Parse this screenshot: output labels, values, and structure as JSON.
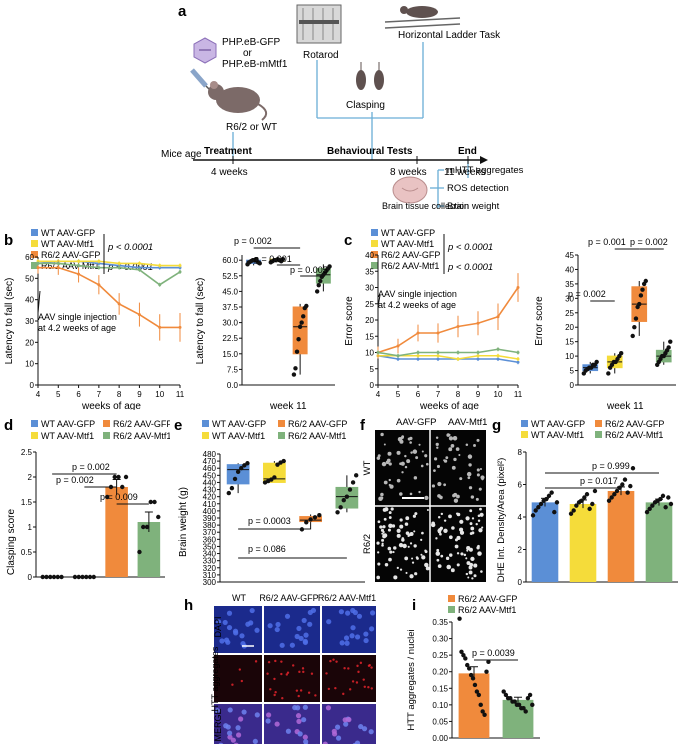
{
  "colors": {
    "wt_gfp": "#5b8fd6",
    "wt_mtf1": "#f5dc3a",
    "r62_gfp": "#f08a3c",
    "r62_mtf1": "#7fb27c",
    "dapi": "#1b2a8c",
    "htt": "#7a0d14",
    "merge": "#3a2a8c",
    "timeline": "#6aaed6"
  },
  "panel_a": {
    "letter": "a",
    "virus_line1": "PHP.eB-GFP",
    "virus_or": "or",
    "virus_line2": "PHP.eB-mMtf1",
    "mouse_label": "R6/2 or WT",
    "rotarod": "Rotarod",
    "ladder": "Horizontal Ladder Task",
    "clasping": "Clasping",
    "mice_age": "Mice age",
    "treatment": "Treatment",
    "behav": "Behavioural Tests",
    "end": "End",
    "t4": "4 weeks",
    "t8": "8 weeks",
    "t11": "11 weeks",
    "brain_collection": "Brain tissue collection",
    "outcomes": [
      "mHTT aggregates",
      "ROS detection",
      "Brain weight"
    ]
  },
  "panel_b": {
    "letter": "b",
    "legend": [
      "WT AAV-GFP",
      "WT AAV-Mtf1",
      "R6/2 AAV-GFP",
      "R6/2 AAV-Mtf1"
    ],
    "p1": "p < 0.0001",
    "p2": "p < 0.0001",
    "ylabel": "Latency to fall (sec)",
    "xlabel": "weeks of age",
    "annotation": [
      "AAV single injection",
      "at 4.2 weeks of age"
    ],
    "ylabel2": "Latency to fall (sec)",
    "xlabel2": "week 11",
    "pvals": [
      "p = 0.002",
      "p = 0.001",
      "p = 0.005"
    ]
  },
  "panel_c": {
    "letter": "c",
    "legend": [
      "WT AAV-GFP",
      "WT AAV-Mtf1",
      "R6/2 AAV-GFP",
      "R6/2 AAV-Mtf1"
    ],
    "p1": "p < 0.0001",
    "p2": "p < 0.0001",
    "ylabel": "Error score",
    "xlabel": "weeks of age",
    "annotation": [
      "AAV single injection",
      "at 4.2 weeks of age"
    ],
    "ylabel2": "Error score",
    "xlabel2": "week 11",
    "pvals": [
      "p = 0.002",
      "p = 0.001",
      "p = 0.002"
    ]
  },
  "panel_d": {
    "letter": "d",
    "legend": [
      "WT AAV-GFP",
      "R6/2 AAV-GFP",
      "WT AAV-Mtf1",
      "R6/2 AAV-Mtf1"
    ],
    "ylabel": "Clasping score",
    "pvals": [
      "p = 0.002",
      "p = 0.002",
      "p = 0.009"
    ]
  },
  "panel_e": {
    "letter": "e",
    "legend": [
      "WT AAV-GFP",
      "R6/2 AAV-GFP",
      "WT AAV-Mtf1",
      "R6/2 AAV-Mtf1"
    ],
    "ylabel": "Brain weight (g)",
    "pvals": [
      "p = 0.0003",
      "p = 0.086"
    ]
  },
  "panel_f": {
    "letter": "f",
    "cols": [
      "AAV-GFP",
      "AAV-Mtf1"
    ],
    "rows": [
      "WT",
      "R6/2"
    ]
  },
  "panel_g": {
    "letter": "g",
    "legend": [
      "WT AAV-GFP",
      "R6/2 AAV-GFP",
      "WT AAV-Mtf1",
      "R6/2 AAV-Mtf1"
    ],
    "ylabel": "DHE Int. Density/Area (pixel²)",
    "pvals": [
      "p = 0.999",
      "p = 0.017"
    ]
  },
  "panel_h": {
    "letter": "h",
    "cols": [
      "WT",
      "R6/2 AAV-GFP",
      "R6/2 AAV-Mtf1"
    ],
    "rows": [
      "DAPI",
      "HTT aggregates",
      "MERGE"
    ]
  },
  "panel_i": {
    "letter": "i",
    "legend": [
      "R6/2 AAV-GFP",
      "R6/2 AAV-Mtf1"
    ],
    "ylabel": "HTT aggregates / nuclei",
    "pval": "p = 0.0039"
  },
  "chart_data": [
    {
      "id": "b_line",
      "type": "line",
      "xlabel": "weeks of age",
      "ylabel": "Latency to fall (sec)",
      "x": [
        4,
        5,
        6,
        7,
        8,
        9,
        10,
        11
      ],
      "xlim": [
        4,
        11
      ],
      "ylim": [
        0,
        60
      ],
      "yticks": [
        0,
        10,
        20,
        30,
        40,
        50,
        60
      ],
      "series": [
        {
          "name": "WT AAV-GFP",
          "values": [
            57,
            58,
            58,
            57,
            56,
            55,
            55,
            55
          ]
        },
        {
          "name": "WT AAV-Mtf1",
          "values": [
            58,
            58,
            58,
            58,
            57,
            57,
            56,
            56
          ]
        },
        {
          "name": "R6/2 AAV-GFP",
          "values": [
            55,
            55,
            52,
            47,
            38,
            33,
            27,
            27
          ]
        },
        {
          "name": "R6/2 AAV-Mtf1",
          "values": [
            57,
            57,
            56,
            55,
            55,
            54,
            47,
            53
          ]
        }
      ]
    },
    {
      "id": "b_box",
      "type": "box",
      "ylabel": "Latency to fall (sec)",
      "xlabel": "week 11",
      "ylim": [
        0,
        62.5
      ],
      "yticks": [
        0,
        7.5,
        15,
        22.5,
        30,
        37.5,
        45,
        52.5,
        60
      ],
      "groups": [
        {
          "name": "WT AAV-GFP",
          "q1": 58.5,
          "median": 59.5,
          "q3": 60,
          "min": 57.5,
          "max": 61,
          "points": [
            58,
            59,
            59.5,
            60,
            60,
            60.5,
            59,
            58.5
          ]
        },
        {
          "name": "WT AAV-Mtf1",
          "q1": 59.5,
          "median": 60,
          "q3": 60.5,
          "min": 59,
          "max": 60.5,
          "points": [
            59,
            59.5,
            60,
            60,
            60.5,
            60,
            59.5,
            60.5
          ]
        },
        {
          "name": "R6/2 AAV-GFP",
          "q1": 15,
          "median": 28,
          "q3": 37.5,
          "min": 5,
          "max": 39,
          "points": [
            5,
            8,
            16,
            22,
            28,
            30,
            33,
            37,
            38
          ]
        },
        {
          "name": "R6/2 AAV-Mtf1",
          "q1": 49,
          "median": 53,
          "q3": 56,
          "min": 45,
          "max": 58,
          "points": [
            45,
            48,
            50,
            52,
            53,
            54,
            55,
            56,
            57
          ]
        }
      ]
    },
    {
      "id": "c_line",
      "type": "line",
      "xlabel": "weeks of age",
      "ylabel": "Error score",
      "x": [
        4,
        5,
        6,
        7,
        8,
        9,
        10,
        11
      ],
      "xlim": [
        4,
        11
      ],
      "ylim": [
        0,
        40
      ],
      "yticks": [
        0,
        5,
        10,
        15,
        20,
        25,
        30,
        35,
        40
      ],
      "series": [
        {
          "name": "WT AAV-GFP",
          "values": [
            9,
            8,
            8,
            8,
            8,
            8,
            8,
            7
          ]
        },
        {
          "name": "WT AAV-Mtf1",
          "values": [
            9,
            9,
            9,
            9,
            8,
            9,
            9,
            8
          ]
        },
        {
          "name": "R6/2 AAV-GFP",
          "values": [
            10,
            12,
            16,
            16,
            18,
            19,
            21,
            30
          ]
        },
        {
          "name": "R6/2 AAV-Mtf1",
          "values": [
            10,
            9,
            10,
            10,
            10,
            10,
            11,
            10
          ]
        }
      ]
    },
    {
      "id": "c_box",
      "type": "box",
      "ylabel": "Error score",
      "xlabel": "week 11",
      "ylim": [
        0,
        45
      ],
      "yticks": [
        0,
        5,
        10,
        15,
        20,
        25,
        30,
        35,
        40,
        45
      ],
      "groups": [
        {
          "name": "WT AAV-GFP",
          "q1": 5,
          "median": 6,
          "q3": 7,
          "min": 4,
          "max": 8,
          "points": [
            4,
            5,
            5.5,
            6,
            6,
            7,
            7,
            8
          ]
        },
        {
          "name": "WT AAV-Mtf1",
          "q1": 6,
          "median": 8,
          "q3": 10,
          "min": 4,
          "max": 11,
          "points": [
            4,
            6,
            7,
            8,
            8,
            9,
            10,
            11
          ]
        },
        {
          "name": "R6/2 AAV-GFP",
          "q1": 22,
          "median": 28,
          "q3": 34,
          "min": 17,
          "max": 36,
          "points": [
            17,
            20,
            23,
            27,
            28,
            31,
            33,
            35,
            36
          ]
        },
        {
          "name": "R6/2 AAV-Mtf1",
          "q1": 8,
          "median": 10,
          "q3": 12,
          "min": 7,
          "max": 15,
          "points": [
            7,
            8,
            9,
            10,
            10,
            11,
            12,
            13,
            15
          ]
        }
      ]
    },
    {
      "id": "d_bar",
      "type": "bar",
      "ylabel": "Clasping score",
      "ylim": [
        0,
        2.5
      ],
      "categories": [
        "WT AAV-GFP",
        "WT AAV-Mtf1",
        "R6/2 AAV-GFP",
        "R6/2 AAV-Mtf1"
      ],
      "values": [
        0,
        0,
        1.8,
        1.1
      ],
      "errors": [
        0,
        0,
        0.15,
        0.2
      ],
      "points": [
        [
          0,
          0,
          0,
          0,
          0,
          0
        ],
        [
          0,
          0,
          0,
          0,
          0,
          0
        ],
        [
          1.6,
          1.8,
          2,
          2,
          1.8,
          2
        ],
        [
          0.5,
          1,
          1,
          1.5,
          1.5,
          1.2
        ]
      ]
    },
    {
      "id": "e_box",
      "type": "box",
      "ylabel": "Brain weight (g)",
      "ylim": [
        300,
        480
      ],
      "yticks": [
        300,
        310,
        320,
        330,
        340,
        350,
        360,
        370,
        380,
        390,
        400,
        410,
        420,
        430,
        440,
        450,
        460,
        470,
        480
      ],
      "groups": [
        {
          "name": "WT AAV-GFP",
          "q1": 438,
          "median": 458,
          "q3": 465,
          "min": 425,
          "max": 467,
          "points": [
            425,
            432,
            445,
            455,
            460,
            464,
            467
          ]
        },
        {
          "name": "WT AAV-Mtf1",
          "q1": 440,
          "median": 445,
          "q3": 467,
          "min": 440,
          "max": 470,
          "points": [
            440,
            442,
            444,
            447,
            465,
            468,
            470
          ]
        },
        {
          "name": "R6/2 AAV-GFP",
          "q1": 385,
          "median": 387,
          "q3": 392,
          "min": 374,
          "max": 395,
          "points": [
            374,
            384,
            388,
            391,
            394
          ]
        },
        {
          "name": "R6/2 AAV-Mtf1",
          "q1": 404,
          "median": 420,
          "q3": 433,
          "min": 398,
          "max": 450,
          "points": [
            398,
            405,
            415,
            420,
            430,
            440,
            450
          ]
        }
      ]
    },
    {
      "id": "g_bar",
      "type": "bar",
      "ylabel": "DHE Int. Density/Area (pixel²)",
      "categories": [
        "WT AAV-GFP",
        "WT AAV-Mtf1",
        "R6/2 AAV-GFP",
        "R6/2 AAV-Mtf1"
      ],
      "values": [
        4.9,
        4.8,
        5.6,
        4.9
      ],
      "errors": [
        0.25,
        0.25,
        0.25,
        0.2
      ],
      "ylim": [
        0,
        8
      ],
      "points": [
        [
          4.1,
          4.4,
          4.6,
          4.8,
          5.0,
          5.1,
          5.3,
          5.5,
          4.3,
          4.9
        ],
        [
          4.2,
          4.4,
          4.7,
          4.9,
          5.0,
          5.2,
          5.4,
          4.5,
          4.8,
          5.6
        ],
        [
          5.0,
          5.2,
          5.4,
          5.6,
          5.8,
          6.0,
          6.3,
          5.5,
          5.9,
          7.0
        ],
        [
          4.3,
          4.5,
          4.7,
          4.9,
          5.0,
          5.1,
          5.3,
          4.6,
          5.2,
          4.8
        ]
      ]
    },
    {
      "id": "i_bar",
      "type": "bar",
      "ylabel": "HTT aggregates / nuclei",
      "categories": [
        "R6/2 AAV-GFP",
        "R6/2 AAV-Mtf1"
      ],
      "values": [
        0.195,
        0.115
      ],
      "errors": [
        0.02,
        0.008
      ],
      "ylim": [
        0,
        0.35
      ],
      "yticks": [
        0,
        0.05,
        0.1,
        0.15,
        0.2,
        0.25,
        0.3,
        0.35
      ],
      "points": [
        [
          0.36,
          0.26,
          0.25,
          0.24,
          0.22,
          0.21,
          0.19,
          0.18,
          0.16,
          0.14,
          0.13,
          0.1,
          0.08,
          0.07,
          0.2,
          0.23
        ],
        [
          0.14,
          0.13,
          0.12,
          0.12,
          0.11,
          0.11,
          0.1,
          0.1,
          0.09,
          0.09,
          0.08,
          0.12,
          0.13,
          0.1
        ]
      ]
    }
  ]
}
